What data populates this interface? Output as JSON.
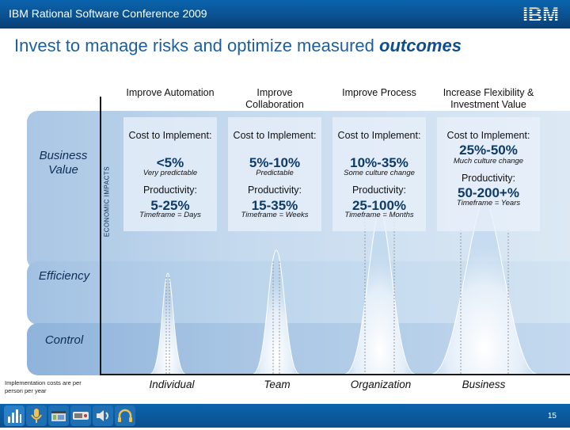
{
  "header": {
    "conference": "IBM Rational Software Conference 2009",
    "logo_text": "IBM"
  },
  "title": {
    "main": "Invest to manage risks and optimize measured",
    "emphasis": "outcomes"
  },
  "axis": {
    "label": "ECONOMIC IMPACTS"
  },
  "bands": {
    "business": "Business Value",
    "efficiency": "Efficiency",
    "control": "Control"
  },
  "columns": [
    {
      "heading": "Improve Automation",
      "cost_label": "Cost to Implement:",
      "cost_value": "<5%",
      "cost_note": "Very predictable",
      "prod_label": "Productivity:",
      "prod_value": "5-25%",
      "timeframe": "Timeframe = Days",
      "scope": "Individual"
    },
    {
      "heading": "Improve Collaboration",
      "cost_label": "Cost to Implement:",
      "cost_value": "5%-10%",
      "cost_note": "Predictable",
      "prod_label": "Productivity:",
      "prod_value": "15-35%",
      "timeframe": "Timeframe = Weeks",
      "scope": "Team"
    },
    {
      "heading": "Improve Process",
      "cost_label": "Cost to Implement:",
      "cost_value": "10%-35%",
      "cost_note": "Some culture change",
      "prod_label": "Productivity:",
      "prod_value": "25-100%",
      "timeframe": "Timeframe = Months",
      "scope": "Organization"
    },
    {
      "heading": "Increase Flexibility & Investment Value",
      "cost_label": "Cost to Implement:",
      "cost_value": "25%-50%",
      "cost_note": "Much culture change",
      "prod_label": "Productivity:",
      "prod_value": "50-200+%",
      "timeframe": "Timeframe = Years",
      "scope": "Business"
    }
  ],
  "footnote": "Implementation costs are per person per year",
  "footer": {
    "page_number": "15",
    "icons": [
      "chart-icon",
      "microphone-icon",
      "film-icon",
      "device-icon",
      "speaker-icon",
      "headphones-icon"
    ]
  },
  "colors": {
    "brand_blue": "#0b4f8e",
    "title_blue": "#1e5fa0"
  }
}
